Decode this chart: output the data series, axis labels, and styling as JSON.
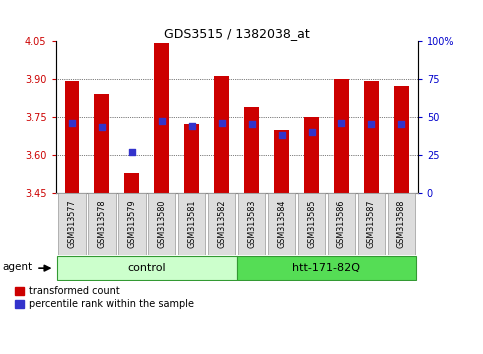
{
  "title": "GDS3515 / 1382038_at",
  "samples": [
    "GSM313577",
    "GSM313578",
    "GSM313579",
    "GSM313580",
    "GSM313581",
    "GSM313582",
    "GSM313583",
    "GSM313584",
    "GSM313585",
    "GSM313586",
    "GSM313587",
    "GSM313588"
  ],
  "transformed_count": [
    3.89,
    3.84,
    3.53,
    4.04,
    3.72,
    3.91,
    3.79,
    3.7,
    3.75,
    3.9,
    3.89,
    3.87
  ],
  "percentile_rank": [
    46,
    43,
    27,
    47,
    44,
    46,
    45,
    38,
    40,
    46,
    45,
    45
  ],
  "ymin": 3.45,
  "ymax": 4.05,
  "yticks": [
    3.45,
    3.6,
    3.75,
    3.9,
    4.05
  ],
  "percentile_yticks": [
    0,
    25,
    50,
    75,
    100
  ],
  "bar_color": "#cc0000",
  "dot_color": "#3333cc",
  "control_label": "control",
  "htt_label": "htt-171-82Q",
  "agent_label": "agent",
  "control_bg": "#ccffcc",
  "htt_bg": "#55dd55",
  "sample_box_bg": "#dddddd",
  "sample_box_edge": "#999999",
  "legend_red_label": "transformed count",
  "legend_blue_label": "percentile rank within the sample",
  "left_tick_color": "#cc0000",
  "right_tick_color": "#0000cc",
  "bar_width": 0.5,
  "baseline": 3.45,
  "grid_lines": [
    3.6,
    3.75,
    3.9
  ],
  "figsize": [
    4.83,
    3.54
  ],
  "dpi": 100
}
